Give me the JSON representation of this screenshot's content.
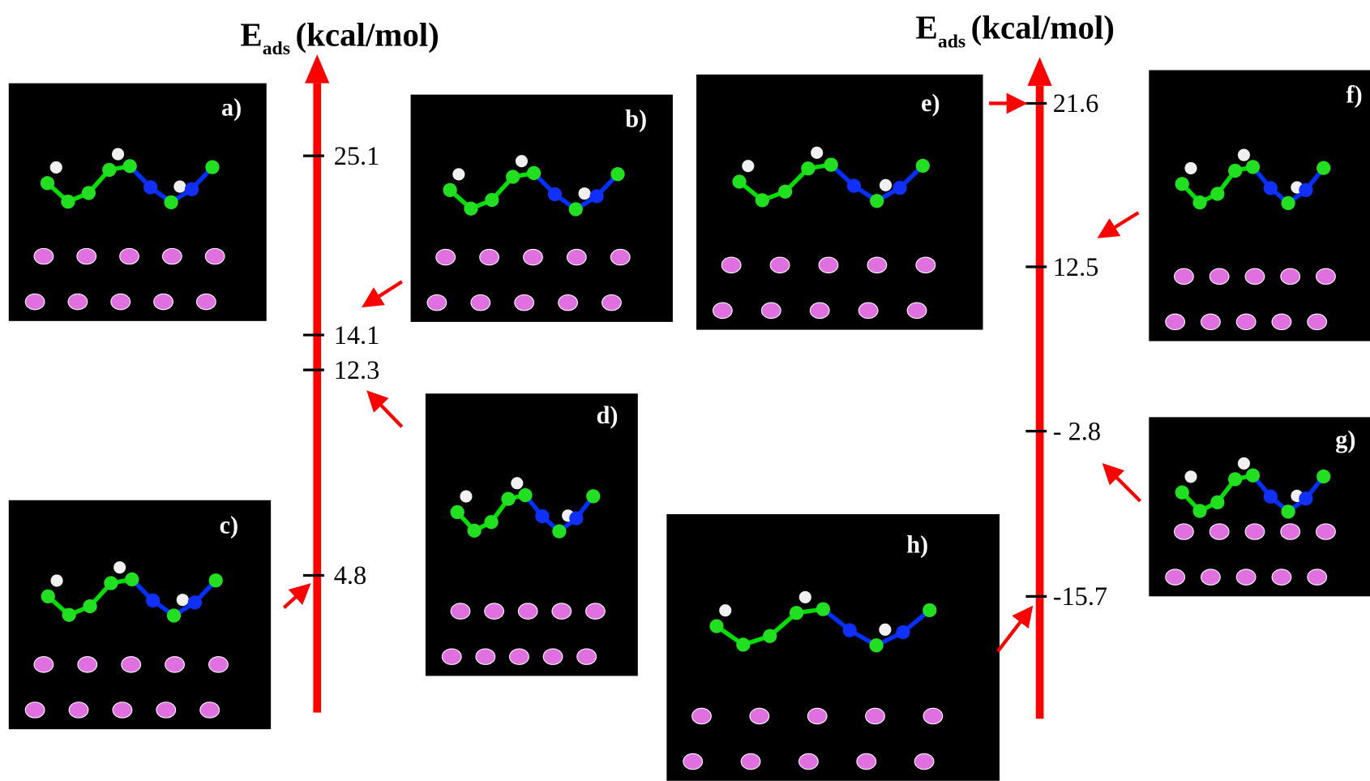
{
  "left_axis": {
    "title": {
      "main": "E",
      "sub": "ads",
      "unit": "(kcal/mol)"
    },
    "ticks": [
      "25.1",
      "14.1",
      "12.3",
      "4.8"
    ]
  },
  "right_axis": {
    "title": {
      "main": "E",
      "sub": "ads",
      "unit": "(kcal/mol)"
    },
    "ticks": [
      "21.6",
      "12.5",
      "- 2.8",
      "-15.7"
    ]
  },
  "panels": [
    "a)",
    "b)",
    "c)",
    "d)",
    "e)",
    "f)",
    "g)",
    "h)"
  ]
}
